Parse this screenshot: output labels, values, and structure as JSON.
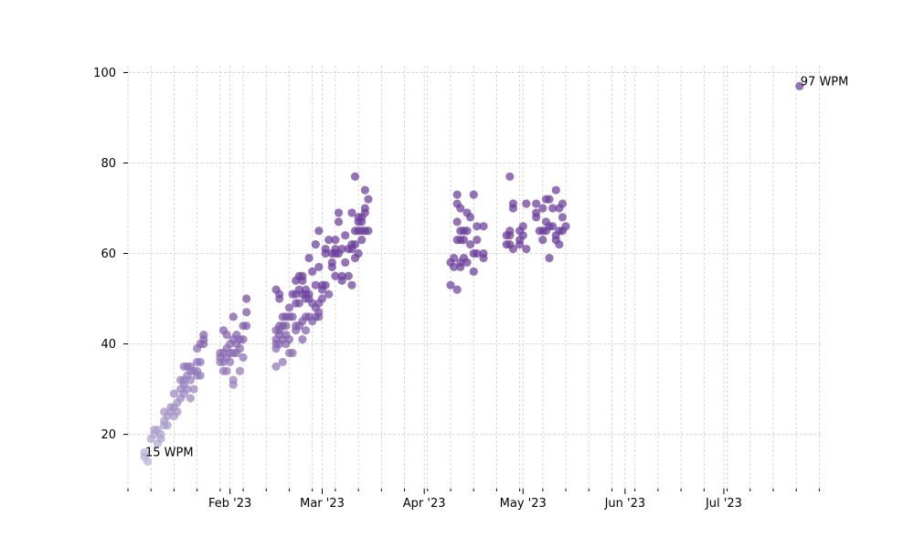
{
  "chart_data": {
    "type": "scatter",
    "title": "",
    "xlabel": "",
    "ylabel": "",
    "x_type": "date",
    "xlim": [
      "2023-01-01",
      "2023-07-31"
    ],
    "ylim": [
      8,
      101.5
    ],
    "y_ticks": [
      20,
      40,
      60,
      80,
      100
    ],
    "x_major_ticks": [
      {
        "date": "2023-02-01",
        "label": "Feb '23"
      },
      {
        "date": "2023-03-01",
        "label": "Mar '23"
      },
      {
        "date": "2023-04-01",
        "label": "Apr '23"
      },
      {
        "date": "2023-05-01",
        "label": "May '23"
      },
      {
        "date": "2023-06-01",
        "label": "Jun '23"
      },
      {
        "date": "2023-07-01",
        "label": "Jul '23"
      }
    ],
    "x_minor_ticks": [
      "2023-01-01",
      "2023-01-08",
      "2023-01-15",
      "2023-01-22",
      "2023-01-29",
      "2023-02-05",
      "2023-02-12",
      "2023-02-19",
      "2023-02-26",
      "2023-03-05",
      "2023-03-12",
      "2023-03-19",
      "2023-03-26",
      "2023-04-02",
      "2023-04-09",
      "2023-04-16",
      "2023-04-23",
      "2023-04-30",
      "2023-05-07",
      "2023-05-14",
      "2023-05-21",
      "2023-05-28",
      "2023-06-04",
      "2023-06-11",
      "2023-06-18",
      "2023-06-25",
      "2023-07-02",
      "2023-07-09",
      "2023-07-16",
      "2023-07-23",
      "2023-07-30"
    ],
    "grid": true,
    "point_color": "#6a3d9a",
    "point_color_light": "#b8b3d6",
    "annotations": [
      {
        "date": "2023-01-06",
        "y": 15,
        "text": "15 WPM"
      },
      {
        "date": "2023-07-24",
        "y": 97,
        "text": "97 WPM"
      }
    ],
    "points": [
      {
        "date": "2023-01-06",
        "y": 15
      },
      {
        "date": "2023-01-06",
        "y": 16
      },
      {
        "date": "2023-01-07",
        "y": 14
      },
      {
        "date": "2023-01-08",
        "y": 19
      },
      {
        "date": "2023-01-09",
        "y": 21
      },
      {
        "date": "2023-01-09",
        "y": 20
      },
      {
        "date": "2023-01-10",
        "y": 18
      },
      {
        "date": "2023-01-10",
        "y": 21
      },
      {
        "date": "2023-01-11",
        "y": 19
      },
      {
        "date": "2023-01-11",
        "y": 20
      },
      {
        "date": "2023-01-12",
        "y": 22
      },
      {
        "date": "2023-01-12",
        "y": 25
      },
      {
        "date": "2023-01-12",
        "y": 23
      },
      {
        "date": "2023-01-13",
        "y": 22
      },
      {
        "date": "2023-01-13",
        "y": 24
      },
      {
        "date": "2023-01-14",
        "y": 26
      },
      {
        "date": "2023-01-14",
        "y": 25
      },
      {
        "date": "2023-01-15",
        "y": 26
      },
      {
        "date": "2023-01-15",
        "y": 29
      },
      {
        "date": "2023-01-15",
        "y": 24
      },
      {
        "date": "2023-01-16",
        "y": 25
      },
      {
        "date": "2023-01-16",
        "y": 27
      },
      {
        "date": "2023-01-17",
        "y": 32
      },
      {
        "date": "2023-01-17",
        "y": 30
      },
      {
        "date": "2023-01-17",
        "y": 28
      },
      {
        "date": "2023-01-18",
        "y": 35
      },
      {
        "date": "2023-01-18",
        "y": 32
      },
      {
        "date": "2023-01-18",
        "y": 31
      },
      {
        "date": "2023-01-18",
        "y": 29
      },
      {
        "date": "2023-01-19",
        "y": 35
      },
      {
        "date": "2023-01-19",
        "y": 33
      },
      {
        "date": "2023-01-19",
        "y": 30
      },
      {
        "date": "2023-01-20",
        "y": 35
      },
      {
        "date": "2023-01-20",
        "y": 34
      },
      {
        "date": "2023-01-20",
        "y": 32
      },
      {
        "date": "2023-01-20",
        "y": 28
      },
      {
        "date": "2023-01-21",
        "y": 34
      },
      {
        "date": "2023-01-21",
        "y": 30
      },
      {
        "date": "2023-01-22",
        "y": 39
      },
      {
        "date": "2023-01-22",
        "y": 36
      },
      {
        "date": "2023-01-22",
        "y": 34
      },
      {
        "date": "2023-01-22",
        "y": 33
      },
      {
        "date": "2023-01-23",
        "y": 40
      },
      {
        "date": "2023-01-23",
        "y": 36
      },
      {
        "date": "2023-01-23",
        "y": 33
      },
      {
        "date": "2023-01-24",
        "y": 42
      },
      {
        "date": "2023-01-24",
        "y": 41
      },
      {
        "date": "2023-01-24",
        "y": 40
      },
      {
        "date": "2023-01-29",
        "y": 38
      },
      {
        "date": "2023-01-29",
        "y": 37
      },
      {
        "date": "2023-01-29",
        "y": 36
      },
      {
        "date": "2023-01-30",
        "y": 43
      },
      {
        "date": "2023-01-30",
        "y": 38
      },
      {
        "date": "2023-01-30",
        "y": 36
      },
      {
        "date": "2023-01-30",
        "y": 34
      },
      {
        "date": "2023-01-31",
        "y": 42
      },
      {
        "date": "2023-01-31",
        "y": 39
      },
      {
        "date": "2023-01-31",
        "y": 37
      },
      {
        "date": "2023-01-31",
        "y": 34
      },
      {
        "date": "2023-02-01",
        "y": 40
      },
      {
        "date": "2023-02-01",
        "y": 38
      },
      {
        "date": "2023-02-01",
        "y": 36
      },
      {
        "date": "2023-02-02",
        "y": 46
      },
      {
        "date": "2023-02-02",
        "y": 41
      },
      {
        "date": "2023-02-02",
        "y": 38
      },
      {
        "date": "2023-02-02",
        "y": 32
      },
      {
        "date": "2023-02-02",
        "y": 31
      },
      {
        "date": "2023-02-03",
        "y": 42
      },
      {
        "date": "2023-02-03",
        "y": 40
      },
      {
        "date": "2023-02-03",
        "y": 38
      },
      {
        "date": "2023-02-04",
        "y": 41
      },
      {
        "date": "2023-02-04",
        "y": 39
      },
      {
        "date": "2023-02-04",
        "y": 34
      },
      {
        "date": "2023-02-05",
        "y": 44
      },
      {
        "date": "2023-02-05",
        "y": 41
      },
      {
        "date": "2023-02-05",
        "y": 37
      },
      {
        "date": "2023-02-06",
        "y": 50
      },
      {
        "date": "2023-02-06",
        "y": 47
      },
      {
        "date": "2023-02-06",
        "y": 44
      },
      {
        "date": "2023-02-15",
        "y": 52
      },
      {
        "date": "2023-02-15",
        "y": 43
      },
      {
        "date": "2023-02-15",
        "y": 41
      },
      {
        "date": "2023-02-15",
        "y": 40
      },
      {
        "date": "2023-02-15",
        "y": 39
      },
      {
        "date": "2023-02-15",
        "y": 35
      },
      {
        "date": "2023-02-16",
        "y": 51
      },
      {
        "date": "2023-02-16",
        "y": 50
      },
      {
        "date": "2023-02-16",
        "y": 44
      },
      {
        "date": "2023-02-16",
        "y": 43
      },
      {
        "date": "2023-02-16",
        "y": 42
      },
      {
        "date": "2023-02-16",
        "y": 40
      },
      {
        "date": "2023-02-17",
        "y": 46
      },
      {
        "date": "2023-02-17",
        "y": 44
      },
      {
        "date": "2023-02-17",
        "y": 41
      },
      {
        "date": "2023-02-17",
        "y": 36
      },
      {
        "date": "2023-02-18",
        "y": 46
      },
      {
        "date": "2023-02-18",
        "y": 44
      },
      {
        "date": "2023-02-18",
        "y": 42
      },
      {
        "date": "2023-02-18",
        "y": 40
      },
      {
        "date": "2023-02-19",
        "y": 48
      },
      {
        "date": "2023-02-19",
        "y": 46
      },
      {
        "date": "2023-02-19",
        "y": 41
      },
      {
        "date": "2023-02-19",
        "y": 38
      },
      {
        "date": "2023-02-20",
        "y": 51
      },
      {
        "date": "2023-02-20",
        "y": 46
      },
      {
        "date": "2023-02-20",
        "y": 38
      },
      {
        "date": "2023-02-21",
        "y": 54
      },
      {
        "date": "2023-02-21",
        "y": 51
      },
      {
        "date": "2023-02-21",
        "y": 49
      },
      {
        "date": "2023-02-21",
        "y": 44
      },
      {
        "date": "2023-02-21",
        "y": 43
      },
      {
        "date": "2023-02-22",
        "y": 55
      },
      {
        "date": "2023-02-22",
        "y": 52
      },
      {
        "date": "2023-02-22",
        "y": 49
      },
      {
        "date": "2023-02-22",
        "y": 44
      },
      {
        "date": "2023-02-23",
        "y": 55
      },
      {
        "date": "2023-02-23",
        "y": 54
      },
      {
        "date": "2023-02-23",
        "y": 51
      },
      {
        "date": "2023-02-23",
        "y": 45
      },
      {
        "date": "2023-02-23",
        "y": 41
      },
      {
        "date": "2023-02-24",
        "y": 52
      },
      {
        "date": "2023-02-24",
        "y": 51
      },
      {
        "date": "2023-02-24",
        "y": 50
      },
      {
        "date": "2023-02-24",
        "y": 46
      },
      {
        "date": "2023-02-24",
        "y": 43
      },
      {
        "date": "2023-02-25",
        "y": 59
      },
      {
        "date": "2023-02-25",
        "y": 51
      },
      {
        "date": "2023-02-25",
        "y": 50
      },
      {
        "date": "2023-02-25",
        "y": 46
      },
      {
        "date": "2023-02-26",
        "y": 56
      },
      {
        "date": "2023-02-26",
        "y": 49
      },
      {
        "date": "2023-02-26",
        "y": 45
      },
      {
        "date": "2023-02-27",
        "y": 62
      },
      {
        "date": "2023-02-27",
        "y": 53
      },
      {
        "date": "2023-02-27",
        "y": 48
      },
      {
        "date": "2023-02-27",
        "y": 46
      },
      {
        "date": "2023-02-28",
        "y": 65
      },
      {
        "date": "2023-02-28",
        "y": 57
      },
      {
        "date": "2023-02-28",
        "y": 49
      },
      {
        "date": "2023-02-28",
        "y": 47
      },
      {
        "date": "2023-02-28",
        "y": 46
      },
      {
        "date": "2023-03-01",
        "y": 53
      },
      {
        "date": "2023-03-01",
        "y": 52
      },
      {
        "date": "2023-03-01",
        "y": 50
      },
      {
        "date": "2023-03-02",
        "y": 61
      },
      {
        "date": "2023-03-02",
        "y": 60
      },
      {
        "date": "2023-03-02",
        "y": 53
      },
      {
        "date": "2023-03-03",
        "y": 63
      },
      {
        "date": "2023-03-03",
        "y": 51
      },
      {
        "date": "2023-03-04",
        "y": 60
      },
      {
        "date": "2023-03-04",
        "y": 58
      },
      {
        "date": "2023-03-04",
        "y": 57
      },
      {
        "date": "2023-03-05",
        "y": 63
      },
      {
        "date": "2023-03-05",
        "y": 61
      },
      {
        "date": "2023-03-05",
        "y": 60
      },
      {
        "date": "2023-03-05",
        "y": 55
      },
      {
        "date": "2023-03-06",
        "y": 69
      },
      {
        "date": "2023-03-06",
        "y": 67
      },
      {
        "date": "2023-03-06",
        "y": 60
      },
      {
        "date": "2023-03-07",
        "y": 61
      },
      {
        "date": "2023-03-07",
        "y": 55
      },
      {
        "date": "2023-03-07",
        "y": 54
      },
      {
        "date": "2023-03-08",
        "y": 64
      },
      {
        "date": "2023-03-08",
        "y": 58
      },
      {
        "date": "2023-03-09",
        "y": 61
      },
      {
        "date": "2023-03-09",
        "y": 55
      },
      {
        "date": "2023-03-10",
        "y": 69
      },
      {
        "date": "2023-03-10",
        "y": 62
      },
      {
        "date": "2023-03-10",
        "y": 61
      },
      {
        "date": "2023-03-10",
        "y": 53
      },
      {
        "date": "2023-03-11",
        "y": 77
      },
      {
        "date": "2023-03-11",
        "y": 65
      },
      {
        "date": "2023-03-11",
        "y": 62
      },
      {
        "date": "2023-03-11",
        "y": 59
      },
      {
        "date": "2023-03-12",
        "y": 68
      },
      {
        "date": "2023-03-12",
        "y": 67
      },
      {
        "date": "2023-03-12",
        "y": 65
      },
      {
        "date": "2023-03-12",
        "y": 60
      },
      {
        "date": "2023-03-13",
        "y": 68
      },
      {
        "date": "2023-03-13",
        "y": 67
      },
      {
        "date": "2023-03-13",
        "y": 65
      },
      {
        "date": "2023-03-13",
        "y": 63
      },
      {
        "date": "2023-03-14",
        "y": 74
      },
      {
        "date": "2023-03-14",
        "y": 70
      },
      {
        "date": "2023-03-14",
        "y": 69
      },
      {
        "date": "2023-03-14",
        "y": 65
      },
      {
        "date": "2023-03-15",
        "y": 72
      },
      {
        "date": "2023-03-15",
        "y": 65
      },
      {
        "date": "2023-04-09",
        "y": 58
      },
      {
        "date": "2023-04-09",
        "y": 53
      },
      {
        "date": "2023-04-10",
        "y": 59
      },
      {
        "date": "2023-04-10",
        "y": 57
      },
      {
        "date": "2023-04-11",
        "y": 73
      },
      {
        "date": "2023-04-11",
        "y": 71
      },
      {
        "date": "2023-04-11",
        "y": 67
      },
      {
        "date": "2023-04-11",
        "y": 63
      },
      {
        "date": "2023-04-11",
        "y": 52
      },
      {
        "date": "2023-04-12",
        "y": 70
      },
      {
        "date": "2023-04-12",
        "y": 65
      },
      {
        "date": "2023-04-12",
        "y": 63
      },
      {
        "date": "2023-04-12",
        "y": 58
      },
      {
        "date": "2023-04-12",
        "y": 57
      },
      {
        "date": "2023-04-13",
        "y": 65
      },
      {
        "date": "2023-04-13",
        "y": 63
      },
      {
        "date": "2023-04-13",
        "y": 59
      },
      {
        "date": "2023-04-14",
        "y": 69
      },
      {
        "date": "2023-04-14",
        "y": 65
      },
      {
        "date": "2023-04-14",
        "y": 58
      },
      {
        "date": "2023-04-15",
        "y": 68
      },
      {
        "date": "2023-04-15",
        "y": 62
      },
      {
        "date": "2023-04-16",
        "y": 73
      },
      {
        "date": "2023-04-16",
        "y": 60
      },
      {
        "date": "2023-04-16",
        "y": 56
      },
      {
        "date": "2023-04-17",
        "y": 66
      },
      {
        "date": "2023-04-17",
        "y": 63
      },
      {
        "date": "2023-04-17",
        "y": 60
      },
      {
        "date": "2023-04-19",
        "y": 66
      },
      {
        "date": "2023-04-19",
        "y": 60
      },
      {
        "date": "2023-04-19",
        "y": 59
      },
      {
        "date": "2023-04-26",
        "y": 64
      },
      {
        "date": "2023-04-26",
        "y": 62
      },
      {
        "date": "2023-04-27",
        "y": 77
      },
      {
        "date": "2023-04-27",
        "y": 65
      },
      {
        "date": "2023-04-27",
        "y": 64
      },
      {
        "date": "2023-04-27",
        "y": 62
      },
      {
        "date": "2023-04-28",
        "y": 71
      },
      {
        "date": "2023-04-28",
        "y": 70
      },
      {
        "date": "2023-04-28",
        "y": 61
      },
      {
        "date": "2023-04-30",
        "y": 65
      },
      {
        "date": "2023-04-30",
        "y": 63
      },
      {
        "date": "2023-04-30",
        "y": 62
      },
      {
        "date": "2023-05-01",
        "y": 66
      },
      {
        "date": "2023-05-01",
        "y": 64
      },
      {
        "date": "2023-05-02",
        "y": 71
      },
      {
        "date": "2023-05-02",
        "y": 61
      },
      {
        "date": "2023-05-05",
        "y": 71
      },
      {
        "date": "2023-05-05",
        "y": 69
      },
      {
        "date": "2023-05-05",
        "y": 68
      },
      {
        "date": "2023-05-06",
        "y": 65
      },
      {
        "date": "2023-05-07",
        "y": 70
      },
      {
        "date": "2023-05-07",
        "y": 65
      },
      {
        "date": "2023-05-07",
        "y": 63
      },
      {
        "date": "2023-05-08",
        "y": 72
      },
      {
        "date": "2023-05-08",
        "y": 67
      },
      {
        "date": "2023-05-08",
        "y": 65
      },
      {
        "date": "2023-05-09",
        "y": 72
      },
      {
        "date": "2023-05-09",
        "y": 66
      },
      {
        "date": "2023-05-09",
        "y": 59
      },
      {
        "date": "2023-05-10",
        "y": 70
      },
      {
        "date": "2023-05-10",
        "y": 66
      },
      {
        "date": "2023-05-11",
        "y": 74
      },
      {
        "date": "2023-05-11",
        "y": 64
      },
      {
        "date": "2023-05-11",
        "y": 63
      },
      {
        "date": "2023-05-12",
        "y": 70
      },
      {
        "date": "2023-05-12",
        "y": 65
      },
      {
        "date": "2023-05-12",
        "y": 62
      },
      {
        "date": "2023-05-13",
        "y": 71
      },
      {
        "date": "2023-05-13",
        "y": 68
      },
      {
        "date": "2023-05-13",
        "y": 65
      },
      {
        "date": "2023-05-14",
        "y": 66
      },
      {
        "date": "2023-07-24",
        "y": 97
      }
    ]
  }
}
